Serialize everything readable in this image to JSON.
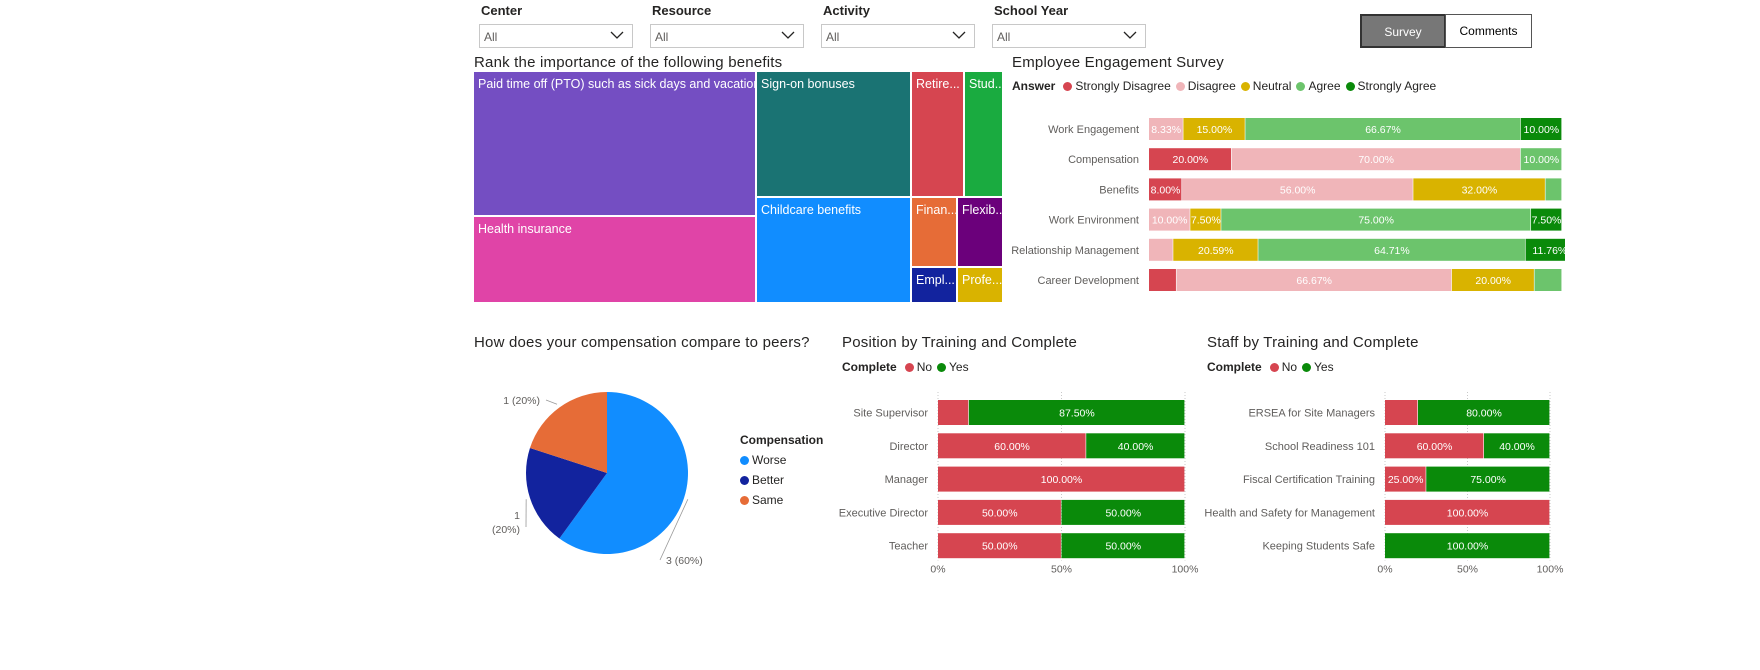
{
  "filters": [
    {
      "label": "Center",
      "value": "All"
    },
    {
      "label": "Resource",
      "value": "All"
    },
    {
      "label": "Activity",
      "value": "All"
    },
    {
      "label": "School Year",
      "value": "All"
    }
  ],
  "buttons": {
    "survey": "Survey",
    "comments": "Comments"
  },
  "colors": {
    "strongly_disagree": "#d64550",
    "disagree": "#f0b5b9",
    "neutral": "#d9b300",
    "agree": "#6cc46c",
    "strongly_agree": "#0a8a0a",
    "no": "#d64550",
    "yes": "#0a8a0a",
    "worse": "#118dff",
    "better": "#12239e",
    "same": "#e66c37"
  },
  "treemap": {
    "title": "Rank the importance of the following benefits",
    "tiles": [
      {
        "label": "Paid time off (PTO) such as sick days and vacation days",
        "color": "#744ec2"
      },
      {
        "label": "Health insurance",
        "color": "#e044a7"
      },
      {
        "label": "Sign-on bonuses",
        "color": "#1a7373"
      },
      {
        "label": "Childcare benefits",
        "color": "#118dff"
      },
      {
        "label": "Retire...",
        "color": "#d64550"
      },
      {
        "label": "Stud...",
        "color": "#1aab40"
      },
      {
        "label": "Finan...",
        "color": "#e66c37"
      },
      {
        "label": "Flexib...",
        "color": "#6b007b"
      },
      {
        "label": "Empl...",
        "color": "#12239e"
      },
      {
        "label": "Profe...",
        "color": "#d9b300"
      }
    ]
  },
  "engagement": {
    "title": "Employee Engagement Survey",
    "legend_title": "Answer",
    "legend": [
      "Strongly Disagree",
      "Disagree",
      "Neutral",
      "Agree",
      "Strongly Agree"
    ]
  },
  "pie": {
    "title": "How does your compensation compare to peers?",
    "legend_title": "Compensation",
    "legend": [
      "Worse",
      "Better",
      "Same"
    ]
  },
  "position": {
    "title": "Position by Training and Complete",
    "legend_title": "Complete",
    "legend": [
      "No",
      "Yes"
    ]
  },
  "staff": {
    "title": "Staff by Training and Complete",
    "legend_title": "Complete",
    "legend": [
      "No",
      "Yes"
    ]
  },
  "chart_data": [
    {
      "type": "treemap",
      "title": "Rank the importance of the following benefits",
      "categories": [
        "Paid time off (PTO) such as sick days and vacation days",
        "Health insurance",
        "Sign-on bonuses",
        "Childcare benefits",
        "Retire...",
        "Stud...",
        "Finan...",
        "Flexib...",
        "Empl...",
        "Profe..."
      ]
    },
    {
      "type": "bar",
      "stacked": "100%",
      "orientation": "horizontal",
      "title": "Employee Engagement Survey",
      "categories": [
        "Work Engagement",
        "Compensation",
        "Benefits",
        "Work Environment",
        "Relationship Management",
        "Career Development"
      ],
      "series": [
        {
          "name": "Strongly Disagree",
          "values": [
            0,
            20.0,
            8.0,
            0,
            0,
            6.67
          ]
        },
        {
          "name": "Disagree",
          "values": [
            8.33,
            70.0,
            56.0,
            10.0,
            5.88,
            66.67
          ]
        },
        {
          "name": "Neutral",
          "values": [
            15.0,
            0,
            32.0,
            7.5,
            20.59,
            20.0
          ]
        },
        {
          "name": "Agree",
          "values": [
            66.67,
            10.0,
            4.0,
            75.0,
            64.71,
            6.67
          ]
        },
        {
          "name": "Strongly Agree",
          "values": [
            10.0,
            0,
            0,
            7.5,
            11.76,
            0
          ]
        }
      ],
      "data_labels": [
        [
          "",
          "8.33%",
          "15.00%",
          "66.67%",
          "10.00%"
        ],
        [
          "20.00%",
          "70.00%",
          "",
          "10.00%",
          ""
        ],
        [
          "8.00%",
          "56.00%",
          "32.00%",
          "",
          ""
        ],
        [
          "",
          "10.00%",
          "7.50%",
          "75.00%",
          "7.50%"
        ],
        [
          "",
          "",
          "20.59%",
          "64.71%",
          "11.76%"
        ],
        [
          "",
          "66.67%",
          "20.00%",
          "",
          ""
        ]
      ],
      "legend_position": "top-left"
    },
    {
      "type": "pie",
      "title": "How does your compensation compare to peers?",
      "categories": [
        "Worse",
        "Better",
        "Same"
      ],
      "values": [
        3,
        1,
        1
      ],
      "data_labels": [
        "3 (60%)",
        "1 (20%)",
        "1 (20%)"
      ],
      "legend_position": "right"
    },
    {
      "type": "bar",
      "stacked": "100%",
      "orientation": "horizontal",
      "title": "Position by Training and Complete",
      "categories": [
        "Site Supervisor",
        "Director",
        "Manager",
        "Executive Director",
        "Teacher"
      ],
      "series": [
        {
          "name": "No",
          "values": [
            12.5,
            60.0,
            100.0,
            50.0,
            50.0
          ]
        },
        {
          "name": "Yes",
          "values": [
            87.5,
            40.0,
            0,
            50.0,
            50.0
          ]
        }
      ],
      "data_labels": [
        [
          "",
          "87.50%"
        ],
        [
          "60.00%",
          "40.00%"
        ],
        [
          "100.00%",
          ""
        ],
        [
          "50.00%",
          "50.00%"
        ],
        [
          "50.00%",
          "50.00%"
        ]
      ],
      "xticks": [
        "0%",
        "50%",
        "100%"
      ],
      "legend_position": "top-left"
    },
    {
      "type": "bar",
      "stacked": "100%",
      "orientation": "horizontal",
      "title": "Staff by Training and Complete",
      "categories": [
        "ERSEA for Site Managers",
        "School Readiness 101",
        "Fiscal Certification Training",
        "Health and Safety for Management",
        "Keeping Students Safe"
      ],
      "series": [
        {
          "name": "No",
          "values": [
            20.0,
            60.0,
            25.0,
            100.0,
            0
          ]
        },
        {
          "name": "Yes",
          "values": [
            80.0,
            40.0,
            75.0,
            0,
            100.0
          ]
        }
      ],
      "data_labels": [
        [
          "",
          "80.00%"
        ],
        [
          "60.00%",
          "40.00%"
        ],
        [
          "25.00%",
          "75.00%"
        ],
        [
          "100.00%",
          ""
        ],
        [
          "",
          "100.00%"
        ]
      ],
      "xticks": [
        "0%",
        "50%",
        "100%"
      ],
      "legend_position": "top-left"
    }
  ]
}
